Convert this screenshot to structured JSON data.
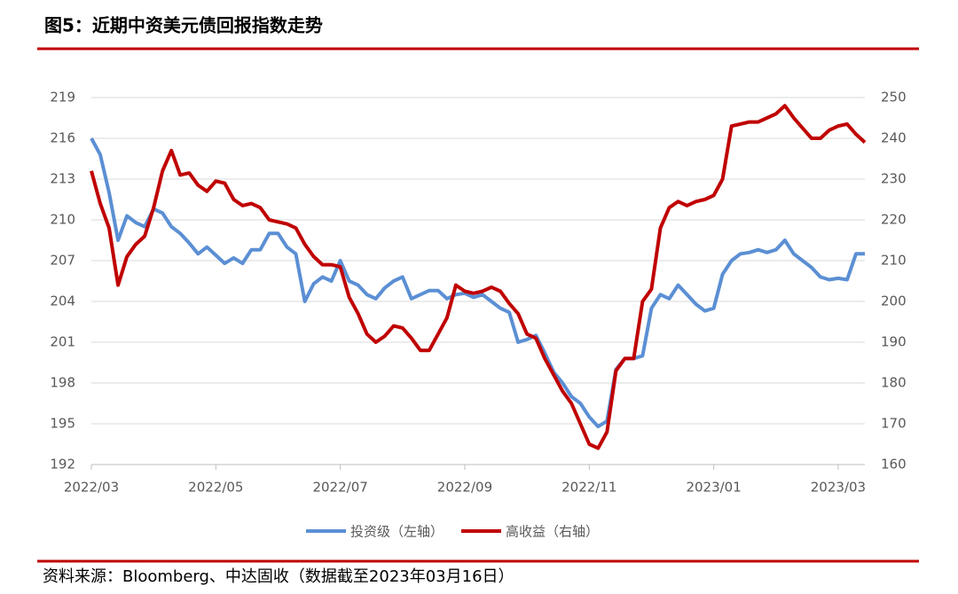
{
  "chart_data": {
    "type": "line",
    "title": "图5：近期中资美元债回报指数走势",
    "source": "资料来源：Bloomberg、中达固收（数据截至2023年03月16日）",
    "legend": "bottom",
    "grid": true,
    "categories": [
      "2022/03",
      null,
      null,
      null,
      null,
      null,
      null,
      null,
      null,
      null,
      null,
      null,
      null,
      null,
      "2022/05",
      null,
      null,
      null,
      null,
      null,
      null,
      null,
      null,
      null,
      null,
      null,
      null,
      null,
      "2022/07",
      null,
      null,
      null,
      null,
      null,
      null,
      null,
      null,
      null,
      null,
      null,
      null,
      null,
      "2022/09",
      null,
      null,
      null,
      null,
      null,
      null,
      null,
      null,
      null,
      null,
      null,
      null,
      null,
      "2022/11",
      null,
      null,
      null,
      null,
      null,
      null,
      null,
      null,
      null,
      null,
      null,
      null,
      null,
      "2023/01",
      null,
      null,
      null,
      null,
      null,
      null,
      null,
      null,
      null,
      null,
      null,
      null,
      null,
      "2023/03",
      null,
      null,
      null
    ],
    "ylim": [
      192,
      219
    ],
    "yticks": [
      192,
      195,
      198,
      201,
      204,
      207,
      210,
      213,
      216,
      219
    ],
    "y2lim": [
      160,
      250
    ],
    "y2ticks": [
      160,
      170,
      180,
      190,
      200,
      210,
      220,
      230,
      240,
      250
    ],
    "series": [
      {
        "name": "投资级（左轴）",
        "color": "#5b8fd4",
        "axis": "y",
        "values": [
          216,
          214.8,
          212,
          208.5,
          210.3,
          209.8,
          209.5,
          210.8,
          210.5,
          209.5,
          209,
          208.3,
          207.5,
          208,
          207.4,
          206.8,
          207.2,
          206.8,
          207.8,
          207.8,
          209,
          209,
          208,
          207.5,
          204,
          205.3,
          205.8,
          205.5,
          207,
          205.5,
          205.2,
          204.5,
          204.2,
          205,
          205.5,
          205.8,
          204.2,
          204.5,
          204.8,
          204.8,
          204.2,
          204.5,
          204.6,
          204.3,
          204.5,
          204,
          203.5,
          203.2,
          201,
          201.2,
          201.5,
          200.2,
          198.8,
          198,
          197,
          196.5,
          195.5,
          194.8,
          195.2,
          199,
          199.8,
          199.8,
          200,
          203.5,
          204.5,
          204.2,
          205.2,
          204.5,
          203.8,
          203.3,
          203.5,
          206,
          207,
          207.5,
          207.6,
          207.8,
          207.6,
          207.8,
          208.5,
          207.5,
          207,
          206.5,
          205.8,
          205.6,
          205.7,
          205.6,
          207.5,
          207.5
        ]
      },
      {
        "name": "高收益（右轴）",
        "color": "#c00000",
        "axis": "y2",
        "values": [
          232,
          224,
          218,
          204,
          211,
          214,
          216,
          223,
          232,
          237,
          231,
          231.5,
          228.5,
          227,
          229.5,
          229,
          225,
          223.5,
          224,
          223,
          220,
          219.5,
          219,
          218,
          214,
          211,
          209,
          209,
          208.5,
          201,
          197,
          192,
          190,
          191.5,
          194,
          193.5,
          191,
          188,
          188,
          192,
          196,
          204,
          202.5,
          202,
          202.5,
          203.5,
          202.5,
          199.5,
          197,
          192,
          191,
          186,
          182,
          178,
          175,
          170,
          165,
          164,
          168,
          183,
          186,
          186,
          200,
          203,
          218,
          223,
          224.5,
          223.5,
          224.5,
          225,
          226,
          230,
          243,
          243.5,
          244,
          244,
          245,
          246,
          248,
          245,
          242.5,
          240,
          240,
          242,
          243,
          243.5,
          241,
          239
        ]
      }
    ]
  }
}
